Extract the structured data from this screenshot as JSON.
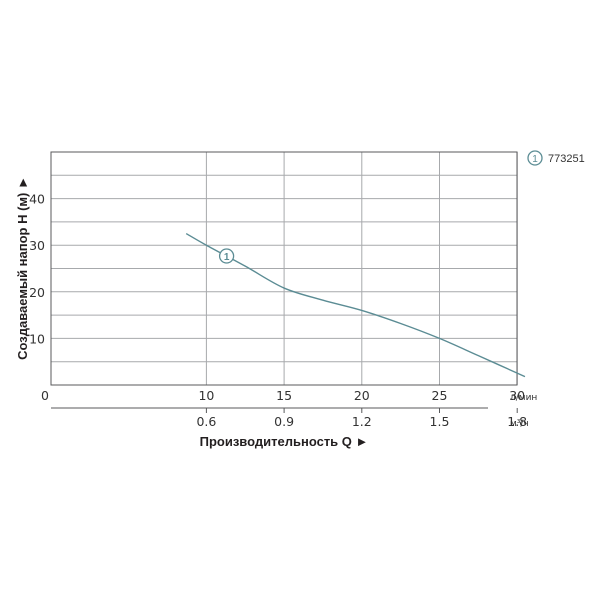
{
  "chart_data": {
    "type": "line",
    "title": "",
    "xlabel": "Производительность Q ►",
    "ylabel": "Создаваемый напор H (м) ►",
    "x_unit_primary": "л/мин",
    "x_unit_secondary": "м³/ч",
    "xlim": [
      0,
      35
    ],
    "ylim": [
      0,
      50
    ],
    "grid": true,
    "x_ticks_primary": [
      "0",
      "10",
      "15",
      "20",
      "25",
      "30"
    ],
    "x_ticks_primary_values": [
      0,
      10,
      15,
      20,
      25,
      30
    ],
    "x_ticks_secondary": [
      "0.6",
      "0.9",
      "1.2",
      "1.5",
      "1.8"
    ],
    "x_ticks_secondary_values": [
      10,
      15,
      20,
      25,
      30
    ],
    "y_ticks": [
      "10",
      "20",
      "30",
      "40"
    ],
    "y_ticks_values": [
      10,
      20,
      30,
      40
    ],
    "y_gridlines": [
      5,
      10,
      15,
      20,
      25,
      30,
      35,
      40,
      45
    ],
    "legend_position": "top-right",
    "series": [
      {
        "name": "773251",
        "marker_label": "1",
        "color": "#5b8c94",
        "x": [
          8.7,
          10,
          12.5,
          15,
          17.5,
          20,
          22.5,
          25,
          27.5,
          30.5
        ],
        "y": [
          32.5,
          30,
          25.5,
          20.8,
          18.2,
          16,
          13.2,
          10,
          6.3,
          1.8
        ],
        "marker_at_x": 11.3
      }
    ]
  },
  "colors": {
    "grid": "#a7a9ac",
    "frame": "#58595b",
    "curve": "#5b8c94"
  }
}
